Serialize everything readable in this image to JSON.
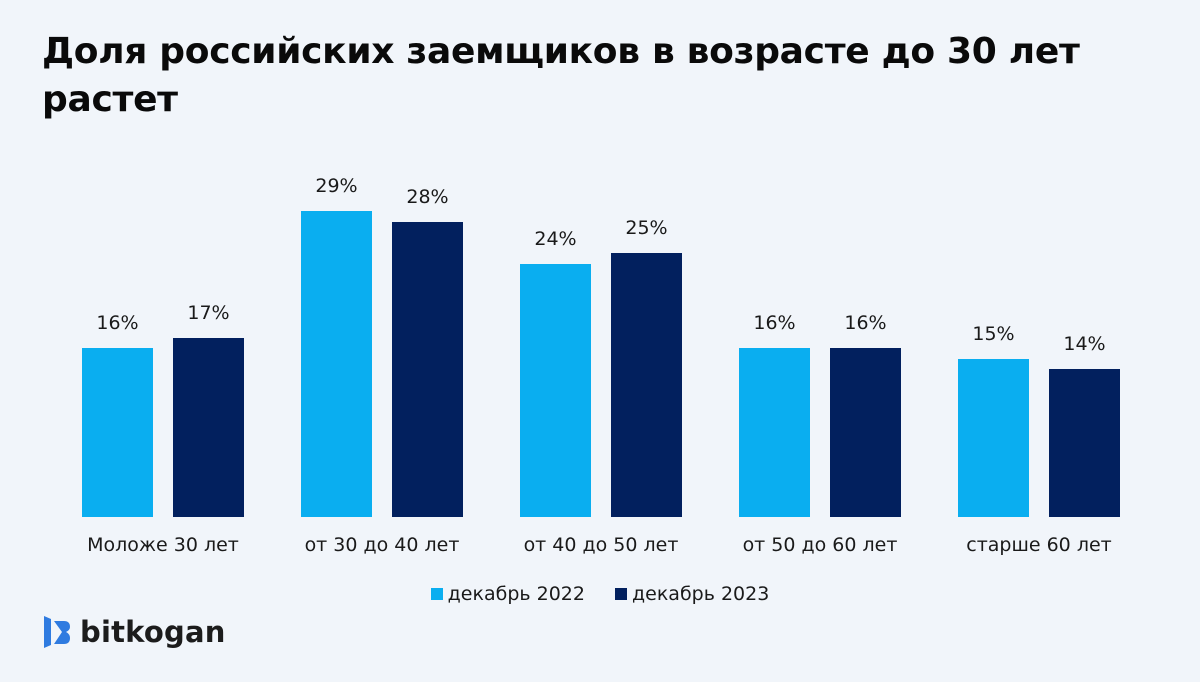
{
  "title": "Доля российских заемщиков в возрасте до 30 лет растет",
  "colors": {
    "background": "#f1f5fa",
    "series_2022": "#0aaef0",
    "series_2023": "#02205e",
    "brand_blue": "#2f7be0"
  },
  "legend": [
    {
      "label": "декабрь 2022",
      "color": "#0aaef0"
    },
    {
      "label": "декабрь 2023",
      "color": "#02205e"
    }
  ],
  "groups": [
    {
      "label": "Моложе 30 лет",
      "v2022": "16%",
      "v2023": "17%"
    },
    {
      "label": "от 30 до 40 лет",
      "v2022": "29%",
      "v2023": "28%"
    },
    {
      "label": "от 40 до 50 лет",
      "v2022": "24%",
      "v2023": "25%"
    },
    {
      "label": "от 50 до 60 лет",
      "v2022": "16%",
      "v2023": "16%"
    },
    {
      "label": "старше 60 лет",
      "v2022": "15%",
      "v2023": "14%"
    }
  ],
  "brand": {
    "name": "bitkogan",
    "icon": "bitkogan-logo-icon"
  },
  "chart_data": {
    "type": "bar",
    "title": "Доля российских заемщиков в возрасте до 30 лет растет",
    "categories": [
      "Моложе 30 лет",
      "от 30 до 40 лет",
      "от 40 до 50 лет",
      "от 50 до 60 лет",
      "старше 60 лет"
    ],
    "series": [
      {
        "name": "декабрь 2022",
        "color": "#0aaef0",
        "values": [
          16,
          29,
          24,
          16,
          15
        ]
      },
      {
        "name": "декабрь 2023",
        "color": "#02205e",
        "values": [
          17,
          28,
          25,
          16,
          14
        ]
      }
    ],
    "unit": "%",
    "xlabel": "",
    "ylabel": "",
    "ylim": [
      0,
      30
    ],
    "grid": false,
    "data_labels": true,
    "legend_position": "bottom"
  }
}
